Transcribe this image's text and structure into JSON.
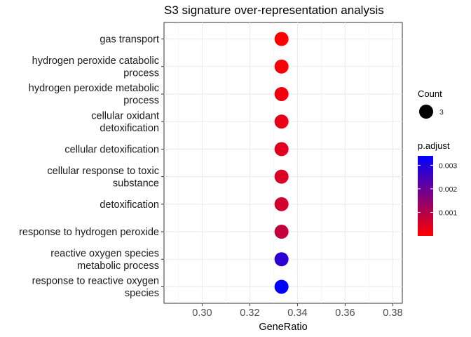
{
  "chart_data": {
    "type": "scatter",
    "title": "S3 signature over-representation analysis",
    "xlabel": "GeneRatio",
    "ylabel": "",
    "xlim": [
      0.284,
      0.384
    ],
    "x_ticks": [
      "0.30",
      "0.32",
      "0.34",
      "0.36",
      "0.38"
    ],
    "x_tick_values": [
      0.3,
      0.32,
      0.34,
      0.36,
      0.38
    ],
    "grid": true,
    "legend_position": "right",
    "categories": [
      [
        "gas transport"
      ],
      [
        "hydrogen peroxide catabolic",
        "process"
      ],
      [
        "hydrogen peroxide metabolic",
        "process"
      ],
      [
        "cellular oxidant",
        "detoxification"
      ],
      [
        "cellular detoxification"
      ],
      [
        "cellular response to toxic",
        "substance"
      ],
      [
        "detoxification"
      ],
      [
        "response to hydrogen peroxide"
      ],
      [
        "reactive oxygen species",
        "metabolic process"
      ],
      [
        "response to reactive oxygen",
        "species"
      ]
    ],
    "x": [
      0.3333,
      0.3333,
      0.3333,
      0.3333,
      0.3333,
      0.3333,
      0.3333,
      0.3333,
      0.3333,
      0.3333
    ],
    "count": [
      3,
      3,
      3,
      3,
      3,
      3,
      3,
      3,
      3,
      3
    ],
    "p_adjust": [
      0.0,
      0.0001,
      0.0002,
      0.0003,
      0.0004,
      0.0005,
      0.0006,
      0.0008,
      0.0028,
      0.0034
    ],
    "count_legend": {
      "title": "Count",
      "values": [
        "3"
      ]
    },
    "color_legend": {
      "title": "p.adjust",
      "min": 0.0,
      "max": 0.0034,
      "low_color": "#ff0000",
      "high_color": "#0000ff",
      "ticks": [
        "0.001",
        "0.002",
        "0.003"
      ],
      "tick_values": [
        0.001,
        0.002,
        0.003
      ]
    }
  }
}
